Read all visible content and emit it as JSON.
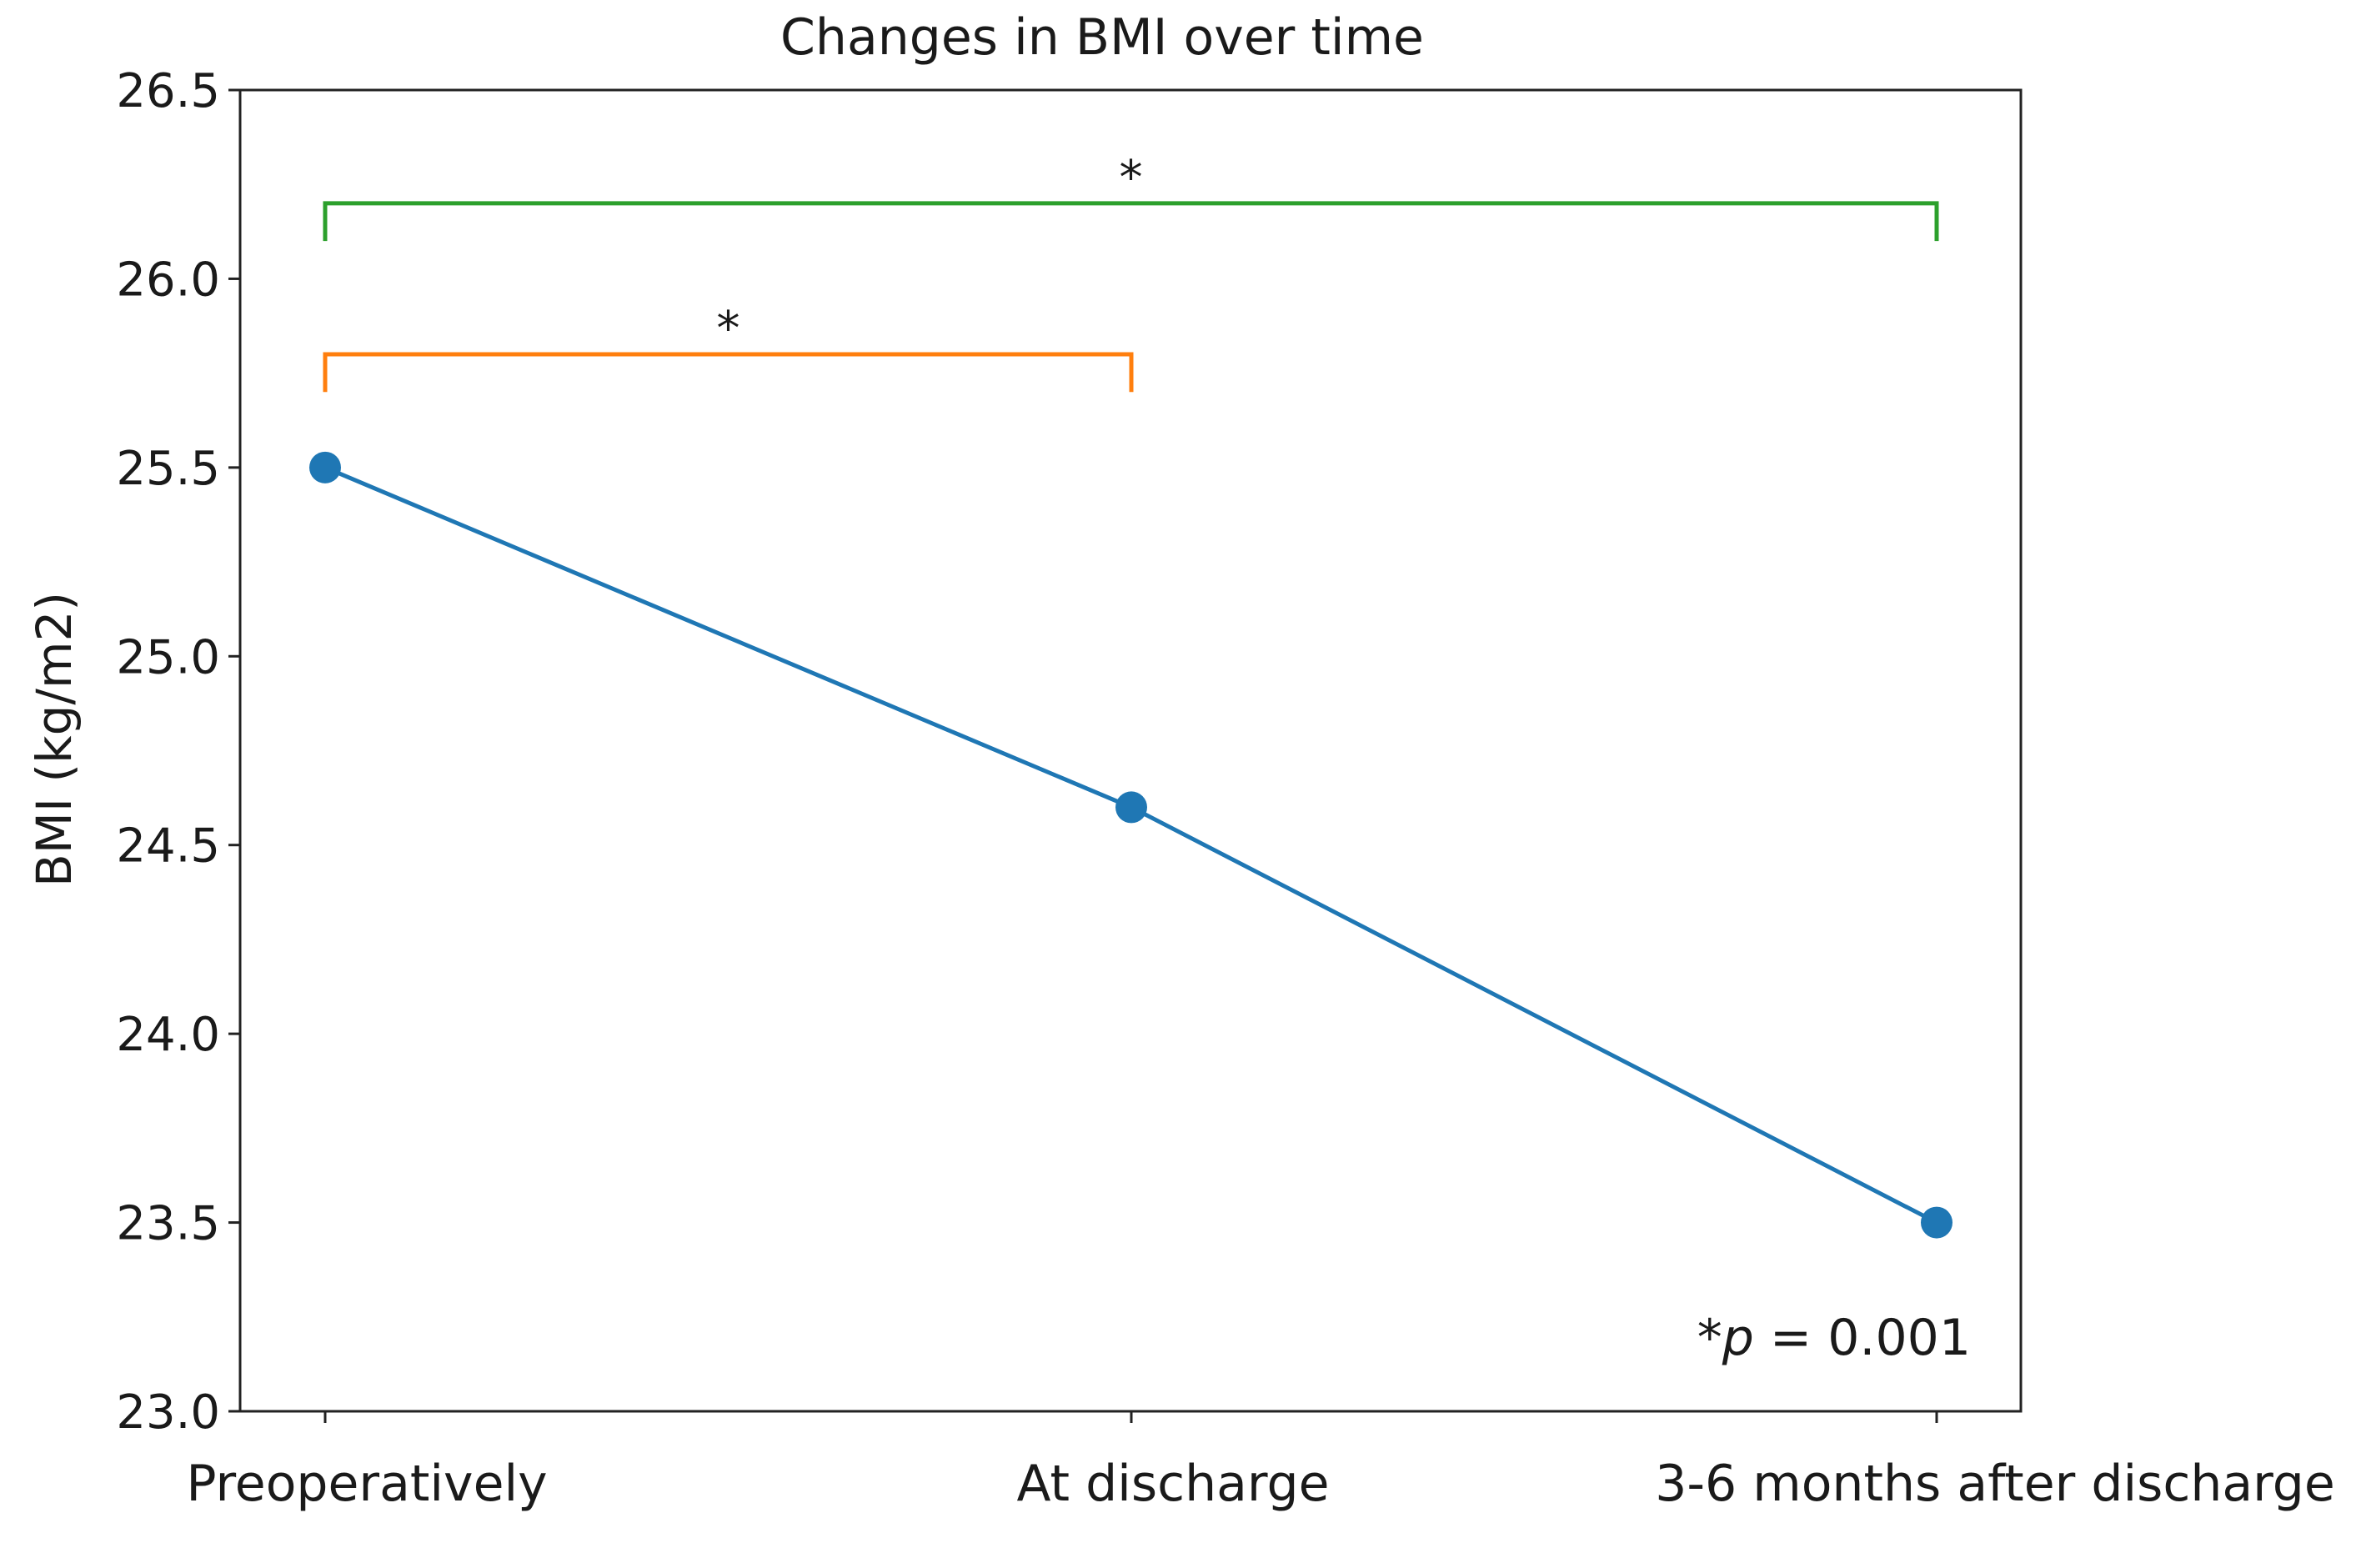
{
  "chart_data": {
    "type": "line",
    "title": "Changes in BMI over time",
    "xlabel": "",
    "ylabel": "BMI (kg/m2)",
    "categories": [
      "Preoperatively",
      "At discharge",
      "3-6 months after discharge"
    ],
    "series": [
      {
        "values": [
          25.5,
          24.6,
          23.5
        ],
        "color": "#1f77b4"
      }
    ],
    "ylim": [
      23.0,
      26.5
    ],
    "yticks": [
      "23.0",
      "23.5",
      "24.0",
      "24.5",
      "25.0",
      "25.5",
      "26.0",
      "26.5"
    ],
    "grid": false,
    "annotations": {
      "brackets": [
        {
          "from_category": "Preoperatively",
          "to_category": "3-6 months after discharge",
          "level": 26.2,
          "tick_bottom": 26.1,
          "label": "*",
          "color": "#2ca02c"
        },
        {
          "from_category": "Preoperatively",
          "to_category": "At discharge",
          "level": 25.8,
          "tick_bottom": 25.7,
          "label": "*",
          "color": "#ff7f0e"
        }
      ],
      "note": {
        "prefix": "*",
        "italic": "p",
        "suffix": " = 0.001"
      }
    }
  }
}
